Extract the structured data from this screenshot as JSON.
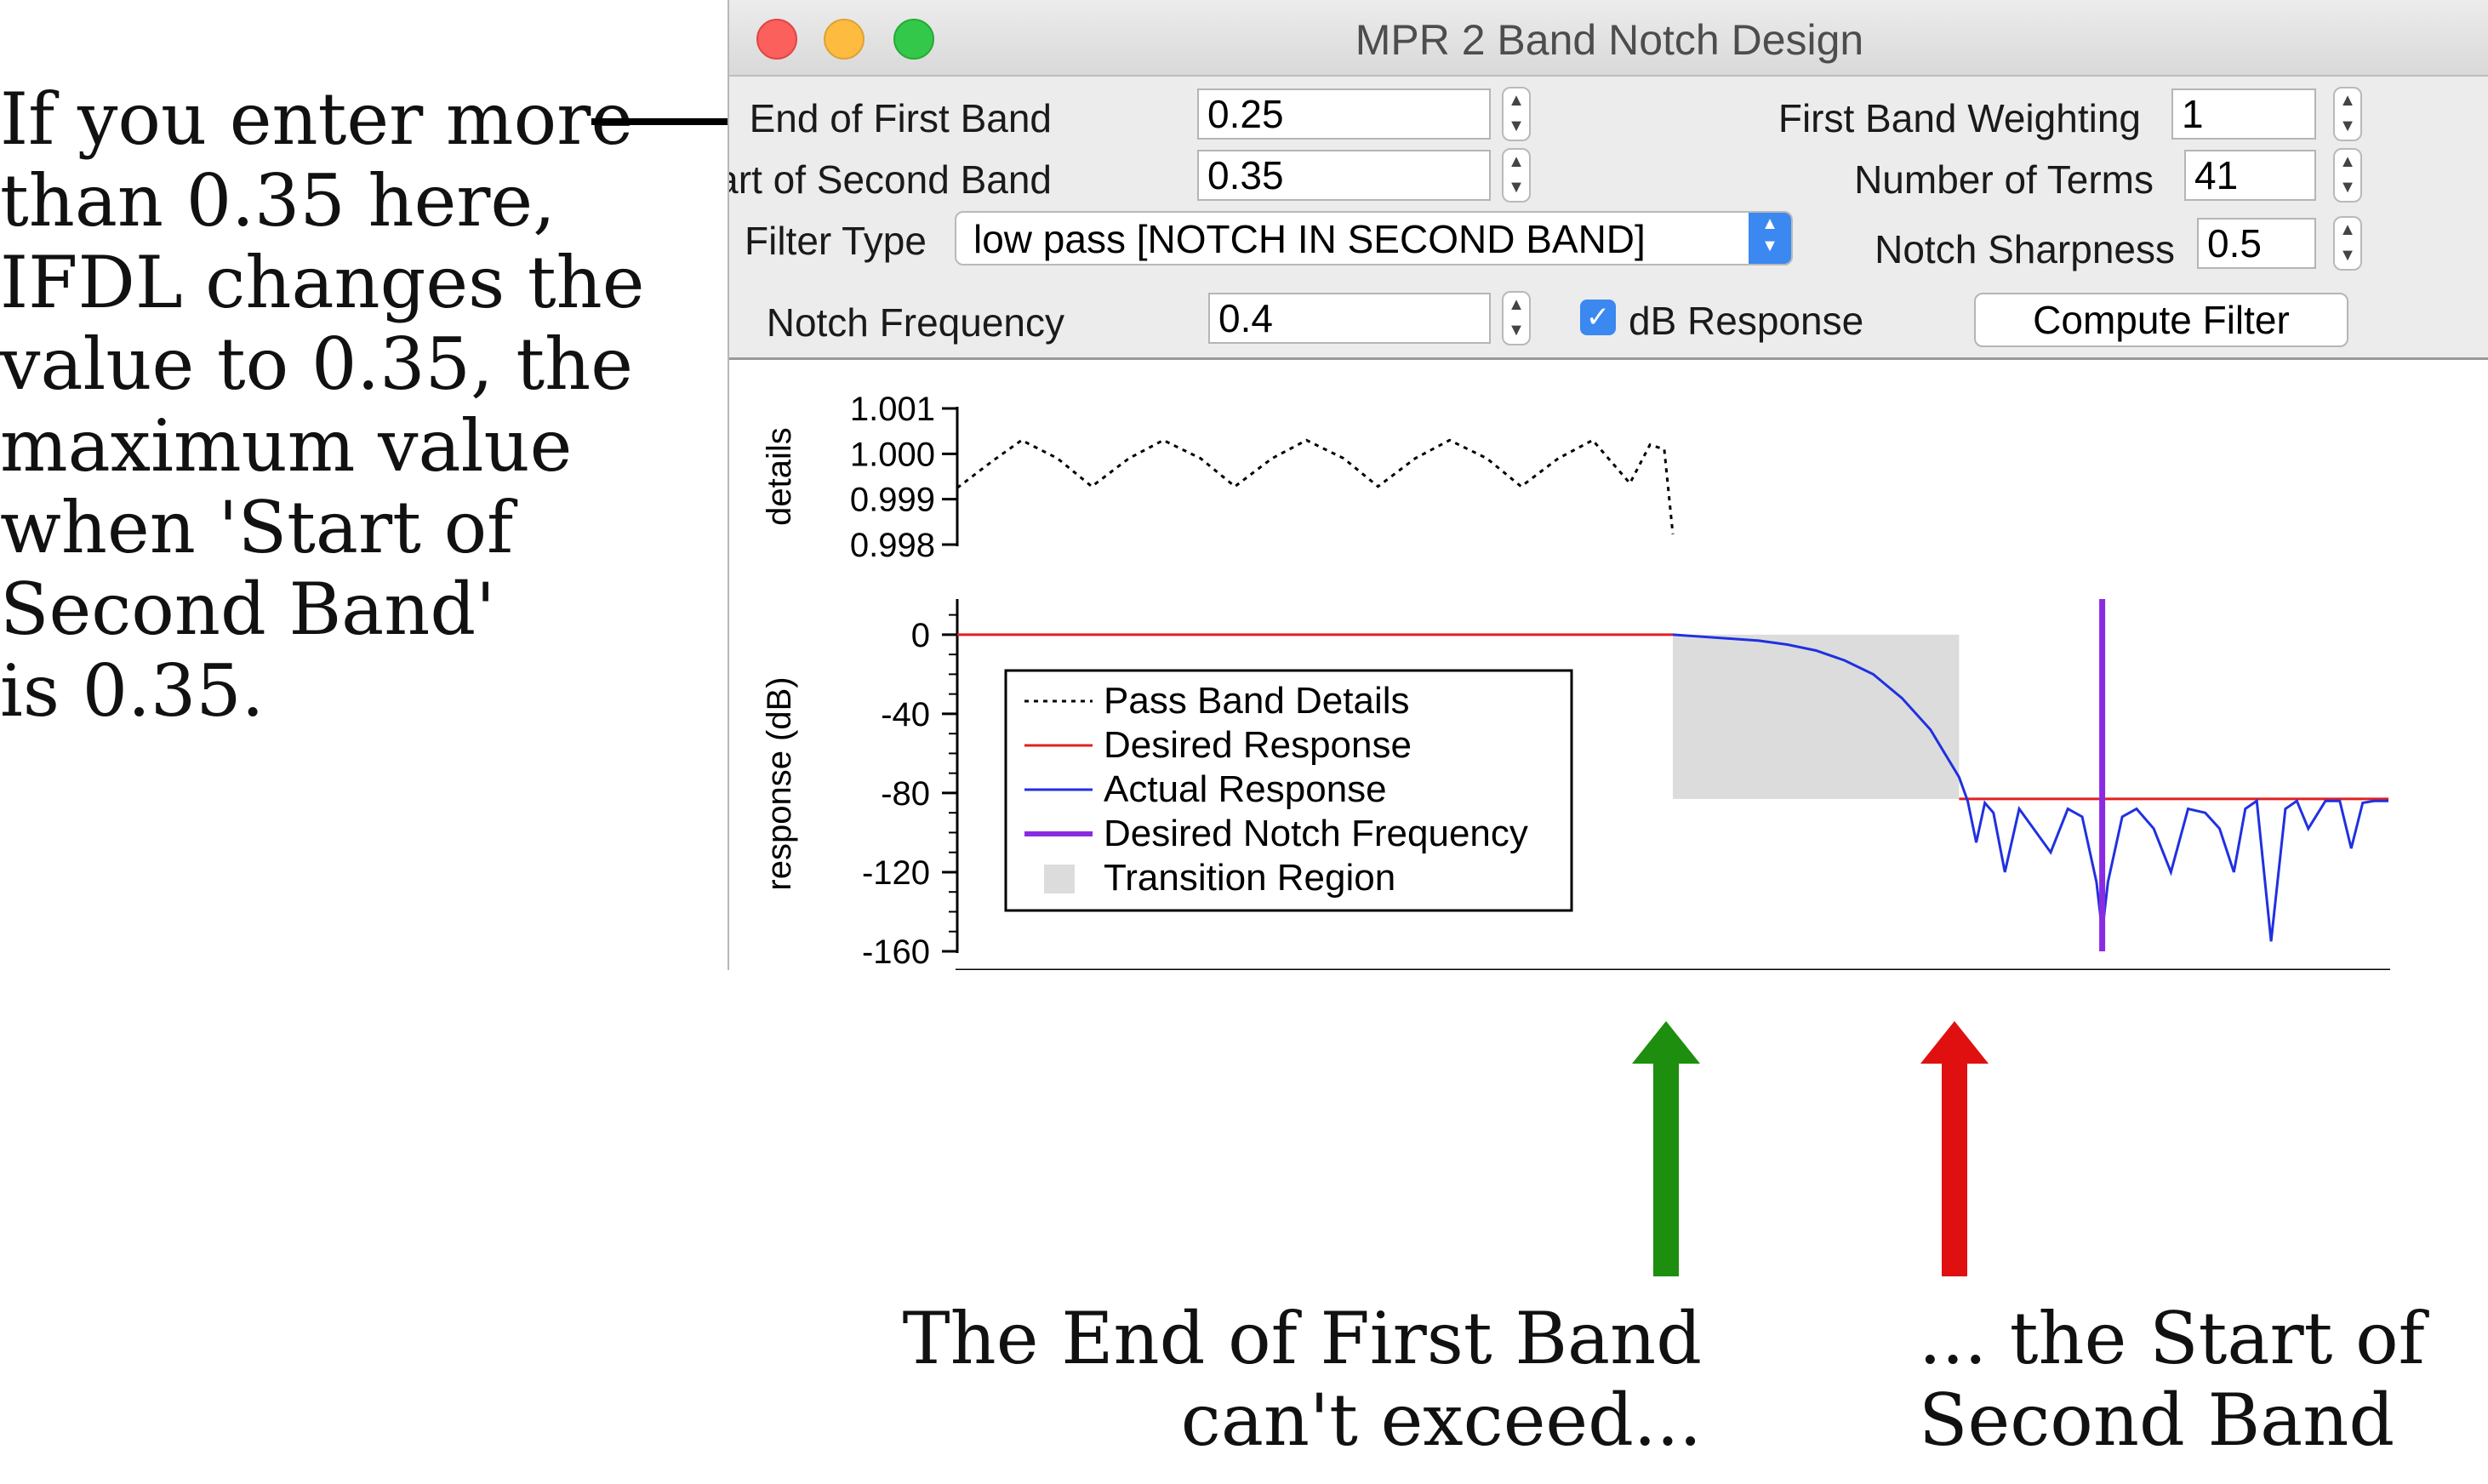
{
  "annotations": {
    "left_lines": [
      "If you enter more",
      "than 0.35 here,",
      "IFDL changes the",
      "value to 0.35, the",
      "maximum value",
      "when 'Start of",
      "Second Band'",
      "is 0.35."
    ],
    "bottom_left_lines": [
      "The End of First Band",
      "can't exceed..."
    ],
    "bottom_right_lines": [
      "... the Start of",
      "Second Band"
    ],
    "arrow_colors": {
      "pointer": "#000000",
      "green": "#1e8e0e",
      "red": "#e01010"
    }
  },
  "window": {
    "title": "MPR 2 Band Notch Design",
    "controls": {
      "end_of_first_band": {
        "label": "End of First Band",
        "value": "0.25"
      },
      "start_of_second_band": {
        "label": "Start of Second Band",
        "value": "0.35"
      },
      "filter_type": {
        "label": "Filter Type",
        "value": "low pass [NOTCH IN SECOND BAND]"
      },
      "notch_frequency": {
        "label": "Notch Frequency",
        "value": "0.4"
      },
      "first_band_weighting": {
        "label": "First Band Weighting",
        "value": "1"
      },
      "number_of_terms": {
        "label": "Number of Terms",
        "value": "41"
      },
      "notch_sharpness": {
        "label": "Notch Sharpness",
        "value": "0.5"
      },
      "db_response": {
        "label": "dB Response",
        "checked": true
      },
      "compute_button": {
        "label": "Compute Filter"
      }
    }
  },
  "chart_data": [
    {
      "type": "line",
      "ylabel": "details",
      "ylim": [
        0.998,
        1.001
      ],
      "yticks": [
        "1.001",
        "1.000",
        "0.999",
        "0.998"
      ],
      "xlim": [
        0.0,
        0.5
      ],
      "series": [
        {
          "name": "Pass Band Details",
          "style": "dotted",
          "color": "#000000",
          "x": [
            0.0,
            0.0125,
            0.0225,
            0.035,
            0.047,
            0.06,
            0.072,
            0.085,
            0.097,
            0.11,
            0.122,
            0.135,
            0.147,
            0.16,
            0.172,
            0.185,
            0.197,
            0.21,
            0.222,
            0.235,
            0.242,
            0.247,
            0.25
          ],
          "y": [
            0.99925,
            0.99985,
            1.0003,
            0.9999,
            0.99928,
            0.9999,
            1.0003,
            0.9999,
            0.99928,
            0.9999,
            1.0003,
            0.9999,
            0.99928,
            0.9999,
            1.0003,
            0.9999,
            0.99928,
            0.9999,
            1.0003,
            0.99935,
            1.0002,
            1.0001,
            0.99823
          ]
        }
      ]
    },
    {
      "type": "line",
      "ylabel": "response (dB)",
      "ylim": [
        -160,
        18
      ],
      "yticks": [
        0,
        -40,
        -80,
        -120,
        -160
      ],
      "xlim": [
        0.0,
        0.5
      ],
      "xticks": [
        "0.0",
        "0.1",
        "0.2",
        "0.3",
        "0.4",
        "0.5"
      ],
      "legend": {
        "position": "center-left",
        "entries": [
          "Pass Band Details",
          "Desired Response",
          "Actual Response",
          "Desired Notch Frequency",
          "Transition Region"
        ]
      },
      "transition_region": {
        "x": [
          0.25,
          0.35
        ],
        "y": [
          -83,
          0
        ],
        "color": "#dcdcdc"
      },
      "series": [
        {
          "name": "Desired Response",
          "color": "#e02020",
          "segments": [
            {
              "x": [
                0.0,
                0.25
              ],
              "y": [
                0,
                0
              ]
            },
            {
              "x": [
                0.35,
                0.5
              ],
              "y": [
                -83,
                -83
              ]
            }
          ]
        },
        {
          "name": "Actual Response",
          "color": "#2030e0",
          "x": [
            0.25,
            0.26,
            0.27,
            0.28,
            0.29,
            0.3,
            0.31,
            0.32,
            0.33,
            0.34,
            0.345,
            0.35,
            0.353,
            0.356,
            0.359,
            0.362,
            0.366,
            0.371,
            0.376,
            0.382,
            0.388,
            0.393,
            0.398,
            0.4,
            0.402,
            0.407,
            0.412,
            0.418,
            0.424,
            0.43,
            0.436,
            0.441,
            0.446,
            0.45,
            0.454,
            0.459,
            0.464,
            0.468,
            0.472,
            0.478,
            0.483,
            0.487,
            0.491,
            0.495,
            0.5
          ],
          "y": [
            0,
            -1,
            -2,
            -3,
            -5,
            -8,
            -13,
            -20,
            -32,
            -48,
            -60,
            -72,
            -84,
            -105,
            -85,
            -90,
            -120,
            -88,
            -98,
            -110,
            -88,
            -92,
            -125,
            -150,
            -125,
            -92,
            -88,
            -98,
            -120,
            -88,
            -90,
            -98,
            -120,
            -88,
            -84,
            -155,
            -88,
            -84,
            -98,
            -84,
            -84,
            -108,
            -85,
            -84,
            -84
          ]
        },
        {
          "name": "Desired Notch Frequency",
          "color": "#8a2be2",
          "x": [
            0.4,
            0.4
          ],
          "y": [
            -160,
            18
          ]
        }
      ]
    }
  ]
}
